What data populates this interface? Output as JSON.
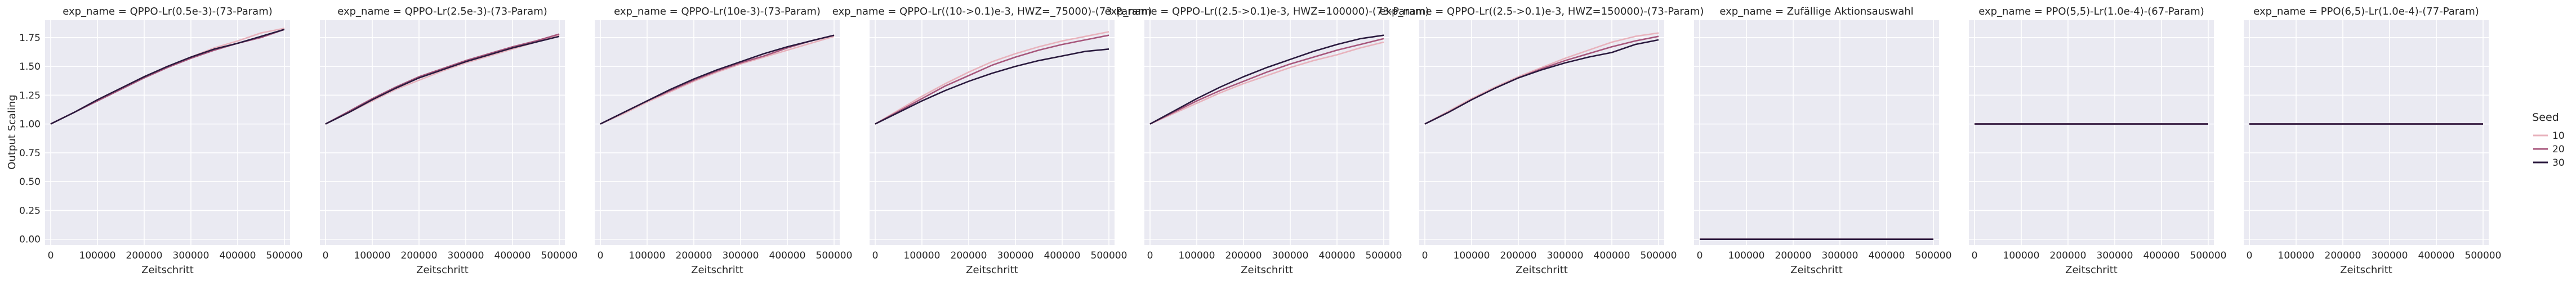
{
  "figure": {
    "ylabel": "Output Scaling",
    "legend": {
      "title": "Seed",
      "entries": [
        {
          "label": "10",
          "color": "#e8b3bd"
        },
        {
          "label": "20",
          "color": "#a7577c"
        },
        {
          "label": "30",
          "color": "#2a1a3e"
        }
      ]
    }
  },
  "chart_data": [
    {
      "type": "line",
      "title": "exp_name = QPPO-Lr(0.5e-3)-(73-Param)",
      "xlabel": "Zeitschritt",
      "ylabel": "Output Scaling",
      "xlim": [
        0,
        500000
      ],
      "ylim": [
        -0.05,
        1.9
      ],
      "x": [
        0,
        50000,
        100000,
        150000,
        200000,
        250000,
        300000,
        350000,
        400000,
        450000,
        500000
      ],
      "series": [
        {
          "name": "10",
          "values": [
            1.0,
            1.1,
            1.21,
            1.31,
            1.41,
            1.5,
            1.58,
            1.66,
            1.72,
            1.79,
            1.83
          ]
        },
        {
          "name": "20",
          "values": [
            1.0,
            1.1,
            1.2,
            1.3,
            1.4,
            1.49,
            1.57,
            1.64,
            1.7,
            1.75,
            1.82
          ]
        },
        {
          "name": "30",
          "values": [
            1.0,
            1.1,
            1.21,
            1.31,
            1.41,
            1.5,
            1.58,
            1.65,
            1.7,
            1.76,
            1.82
          ]
        }
      ]
    },
    {
      "type": "line",
      "title": "exp_name = QPPO-Lr(2.5e-3)-(73-Param)",
      "xlabel": "Zeitschritt",
      "ylabel": "",
      "xlim": [
        0,
        500000
      ],
      "ylim": [
        -0.05,
        1.9
      ],
      "x": [
        0,
        50000,
        100000,
        150000,
        200000,
        250000,
        300000,
        350000,
        400000,
        450000,
        500000
      ],
      "series": [
        {
          "name": "10",
          "values": [
            1.0,
            1.1,
            1.2,
            1.3,
            1.38,
            1.46,
            1.53,
            1.59,
            1.65,
            1.71,
            1.77
          ]
        },
        {
          "name": "20",
          "values": [
            1.0,
            1.11,
            1.22,
            1.32,
            1.41,
            1.48,
            1.55,
            1.61,
            1.67,
            1.72,
            1.78
          ]
        },
        {
          "name": "30",
          "values": [
            1.0,
            1.1,
            1.21,
            1.31,
            1.4,
            1.47,
            1.54,
            1.6,
            1.66,
            1.71,
            1.76
          ]
        }
      ]
    },
    {
      "type": "line",
      "title": "exp_name = QPPO-Lr(10e-3)-(73-Param)",
      "xlabel": "Zeitschritt",
      "ylabel": "",
      "xlim": [
        0,
        500000
      ],
      "ylim": [
        -0.05,
        1.9
      ],
      "x": [
        0,
        50000,
        100000,
        150000,
        200000,
        250000,
        300000,
        350000,
        400000,
        450000,
        500000
      ],
      "series": [
        {
          "name": "10",
          "values": [
            1.0,
            1.09,
            1.19,
            1.28,
            1.37,
            1.45,
            1.52,
            1.58,
            1.64,
            1.7,
            1.76
          ]
        },
        {
          "name": "20",
          "values": [
            1.0,
            1.1,
            1.2,
            1.29,
            1.38,
            1.46,
            1.53,
            1.59,
            1.66,
            1.72,
            1.77
          ]
        },
        {
          "name": "30",
          "values": [
            1.0,
            1.1,
            1.2,
            1.3,
            1.39,
            1.47,
            1.54,
            1.61,
            1.67,
            1.72,
            1.77
          ]
        }
      ]
    },
    {
      "type": "line",
      "title": "exp_name = QPPO-Lr((10->0.1)e-3, HWZ=_75000)-(73-Param)",
      "xlabel": "Zeitschritt",
      "ylabel": "",
      "xlim": [
        0,
        500000
      ],
      "ylim": [
        -0.05,
        1.9
      ],
      "x": [
        0,
        50000,
        100000,
        150000,
        200000,
        250000,
        300000,
        350000,
        400000,
        450000,
        500000
      ],
      "series": [
        {
          "name": "10",
          "values": [
            1.0,
            1.12,
            1.24,
            1.35,
            1.45,
            1.54,
            1.61,
            1.67,
            1.72,
            1.76,
            1.8
          ]
        },
        {
          "name": "20",
          "values": [
            1.0,
            1.11,
            1.22,
            1.33,
            1.42,
            1.51,
            1.58,
            1.64,
            1.69,
            1.73,
            1.77
          ]
        },
        {
          "name": "30",
          "values": [
            1.0,
            1.1,
            1.2,
            1.29,
            1.37,
            1.44,
            1.5,
            1.55,
            1.59,
            1.63,
            1.65
          ]
        }
      ]
    },
    {
      "type": "line",
      "title": "exp_name = QPPO-Lr((2.5->0.1)e-3, HWZ=100000)-(73-Param)",
      "xlabel": "Zeitschritt",
      "ylabel": "",
      "xlim": [
        0,
        500000
      ],
      "ylim": [
        -0.05,
        1.9
      ],
      "x": [
        0,
        50000,
        100000,
        150000,
        200000,
        250000,
        300000,
        350000,
        400000,
        450000,
        500000
      ],
      "series": [
        {
          "name": "10",
          "values": [
            1.0,
            1.09,
            1.18,
            1.27,
            1.35,
            1.42,
            1.49,
            1.55,
            1.6,
            1.66,
            1.71
          ]
        },
        {
          "name": "20",
          "values": [
            1.0,
            1.1,
            1.2,
            1.29,
            1.37,
            1.45,
            1.52,
            1.58,
            1.64,
            1.69,
            1.74
          ]
        },
        {
          "name": "30",
          "values": [
            1.0,
            1.11,
            1.22,
            1.32,
            1.41,
            1.49,
            1.56,
            1.63,
            1.69,
            1.74,
            1.77
          ]
        }
      ]
    },
    {
      "type": "line",
      "title": "exp_name = QPPO-Lr((2.5->0.1)e-3, HWZ=150000)-(73-Param)",
      "xlabel": "Zeitschritt",
      "ylabel": "",
      "xlim": [
        0,
        500000
      ],
      "ylim": [
        -0.05,
        1.9
      ],
      "x": [
        0,
        50000,
        100000,
        150000,
        200000,
        250000,
        300000,
        350000,
        400000,
        450000,
        500000
      ],
      "series": [
        {
          "name": "10",
          "values": [
            1.0,
            1.11,
            1.22,
            1.32,
            1.41,
            1.49,
            1.57,
            1.64,
            1.71,
            1.76,
            1.79
          ]
        },
        {
          "name": "20",
          "values": [
            1.0,
            1.1,
            1.21,
            1.31,
            1.4,
            1.48,
            1.55,
            1.61,
            1.67,
            1.72,
            1.76
          ]
        },
        {
          "name": "30",
          "values": [
            1.0,
            1.1,
            1.21,
            1.31,
            1.4,
            1.47,
            1.53,
            1.58,
            1.62,
            1.69,
            1.73
          ]
        }
      ]
    },
    {
      "type": "line",
      "title": "exp_name = Zufällige Aktionsauswahl",
      "xlabel": "Zeitschritt",
      "ylabel": "",
      "xlim": [
        0,
        500000
      ],
      "ylim": [
        -0.05,
        1.9
      ],
      "x": [
        0,
        50000,
        100000,
        150000,
        200000,
        250000,
        300000,
        350000,
        400000,
        450000,
        500000
      ],
      "series": [
        {
          "name": "10",
          "values": [
            0,
            0,
            0,
            0,
            0,
            0,
            0,
            0,
            0,
            0,
            0
          ]
        },
        {
          "name": "20",
          "values": [
            0,
            0,
            0,
            0,
            0,
            0,
            0,
            0,
            0,
            0,
            0
          ]
        },
        {
          "name": "30",
          "values": [
            0,
            0,
            0,
            0,
            0,
            0,
            0,
            0,
            0,
            0,
            0
          ]
        }
      ]
    },
    {
      "type": "line",
      "title": "exp_name = PPO(5,5)-Lr(1.0e-4)-(67-Param)",
      "xlabel": "Zeitschritt",
      "ylabel": "",
      "xlim": [
        0,
        500000
      ],
      "ylim": [
        -0.05,
        1.9
      ],
      "x": [
        0,
        50000,
        100000,
        150000,
        200000,
        250000,
        300000,
        350000,
        400000,
        450000,
        500000
      ],
      "series": [
        {
          "name": "10",
          "values": [
            1,
            1,
            1,
            1,
            1,
            1,
            1,
            1,
            1,
            1,
            1
          ]
        },
        {
          "name": "20",
          "values": [
            1,
            1,
            1,
            1,
            1,
            1,
            1,
            1,
            1,
            1,
            1
          ]
        },
        {
          "name": "30",
          "values": [
            1,
            1,
            1,
            1,
            1,
            1,
            1,
            1,
            1,
            1,
            1
          ]
        }
      ]
    },
    {
      "type": "line",
      "title": "exp_name = PPO(6,5)-Lr(1.0e-4)-(77-Param)",
      "xlabel": "Zeitschritt",
      "ylabel": "",
      "xlim": [
        0,
        500000
      ],
      "ylim": [
        -0.05,
        1.9
      ],
      "x": [
        0,
        50000,
        100000,
        150000,
        200000,
        250000,
        300000,
        350000,
        400000,
        450000,
        500000
      ],
      "series": [
        {
          "name": "10",
          "values": [
            1,
            1,
            1,
            1,
            1,
            1,
            1,
            1,
            1,
            1,
            1
          ]
        },
        {
          "name": "20",
          "values": [
            1,
            1,
            1,
            1,
            1,
            1,
            1,
            1,
            1,
            1,
            1
          ]
        },
        {
          "name": "30",
          "values": [
            1,
            1,
            1,
            1,
            1,
            1,
            1,
            1,
            1,
            1,
            1
          ]
        }
      ]
    }
  ],
  "axes": {
    "xticks": [
      0,
      100000,
      200000,
      300000,
      400000,
      500000
    ],
    "yticks": [
      0.0,
      0.25,
      0.5,
      0.75,
      1.0,
      1.25,
      1.5,
      1.75
    ],
    "ytick_labels": [
      "0.00",
      "0.25",
      "0.50",
      "0.75",
      "1.00",
      "1.25",
      "1.50",
      "1.75"
    ],
    "grid": true,
    "panel_background": "#eaeaf2",
    "grid_color": "#ffffff"
  }
}
